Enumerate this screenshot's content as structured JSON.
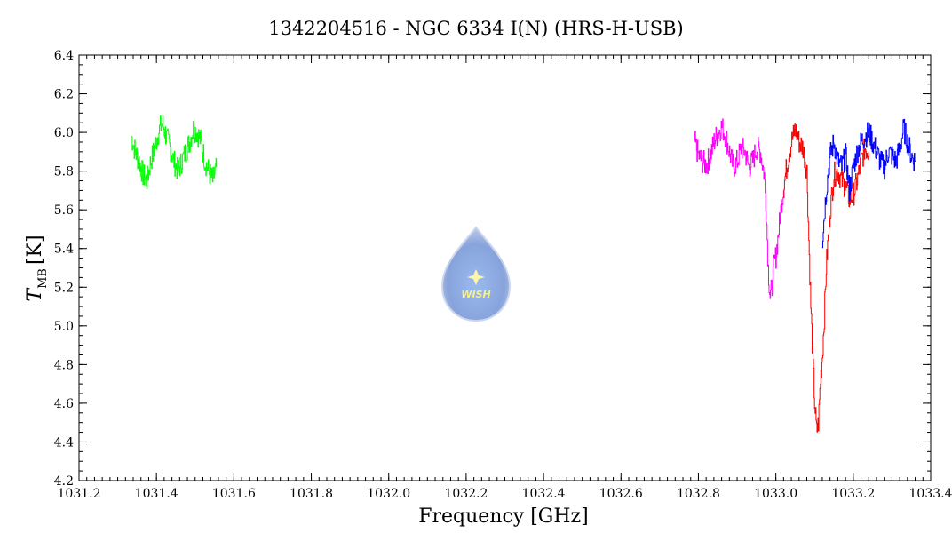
{
  "chart_data": {
    "type": "line",
    "title": "1342204516 - NGC 6334 I(N) (HRS-H-USB)",
    "xlabel": "Frequency [GHz]",
    "ylabel": "T",
    "ylabel_sub": "MB",
    "ylabel_unit": "[K]",
    "xlim": [
      1031.2,
      1033.4
    ],
    "ylim": [
      4.2,
      6.4
    ],
    "xticks": [
      "1031.2",
      "1031.4",
      "1031.6",
      "1031.8",
      "1032.0",
      "1032.2",
      "1032.4",
      "1032.6",
      "1032.8",
      "1033.0",
      "1033.2",
      "1033.4"
    ],
    "yticks": [
      "4.2",
      "4.4",
      "4.6",
      "4.8",
      "5.0",
      "5.2",
      "5.4",
      "5.6",
      "5.8",
      "6.0",
      "6.2",
      "6.4"
    ],
    "logo_text": "WISH",
    "series": [
      {
        "color": "#00ff00",
        "x": [
          1031.335,
          1031.345,
          1031.355,
          1031.365,
          1031.375,
          1031.385,
          1031.395,
          1031.405,
          1031.415,
          1031.425,
          1031.435,
          1031.445,
          1031.455,
          1031.465,
          1031.475,
          1031.485,
          1031.495,
          1031.505,
          1031.515,
          1031.525,
          1031.535,
          1031.545,
          1031.555
        ],
        "y": [
          5.98,
          5.9,
          5.85,
          5.78,
          5.75,
          5.85,
          5.92,
          6.0,
          6.05,
          5.98,
          5.92,
          5.85,
          5.8,
          5.85,
          5.9,
          5.95,
          6.02,
          6.0,
          5.95,
          5.85,
          5.8,
          5.75,
          5.82
        ]
      },
      {
        "color": "#ff00ff",
        "x": [
          1032.79,
          1032.8,
          1032.81,
          1032.82,
          1032.83,
          1032.84,
          1032.85,
          1032.86,
          1032.87,
          1032.88,
          1032.89,
          1032.9,
          1032.91,
          1032.92,
          1032.93,
          1032.94,
          1032.95,
          1032.96,
          1032.97,
          1032.975,
          1032.98,
          1032.985,
          1032.99,
          1032.995,
          1033.0,
          1033.005,
          1033.01,
          1033.015,
          1033.02
        ],
        "y": [
          5.95,
          5.88,
          5.85,
          5.83,
          5.88,
          5.95,
          6.0,
          6.03,
          5.98,
          5.9,
          5.82,
          5.85,
          5.92,
          5.9,
          5.82,
          5.85,
          5.92,
          5.9,
          5.78,
          5.6,
          5.3,
          5.15,
          5.2,
          5.32,
          5.36,
          5.45,
          5.55,
          5.65,
          5.7
        ]
      },
      {
        "color": "#ff0000",
        "x": [
          1033.02,
          1033.03,
          1033.04,
          1033.05,
          1033.06,
          1033.07,
          1033.08,
          1033.085,
          1033.09,
          1033.095,
          1033.1,
          1033.105,
          1033.11,
          1033.115,
          1033.12,
          1033.125,
          1033.13,
          1033.14,
          1033.15,
          1033.16,
          1033.17,
          1033.18,
          1033.19,
          1033.2,
          1033.21,
          1033.22,
          1033.23,
          1033.24
        ],
        "y": [
          5.72,
          5.85,
          5.95,
          6.02,
          5.95,
          5.92,
          5.8,
          5.45,
          5.1,
          4.85,
          4.6,
          4.45,
          4.5,
          4.72,
          4.85,
          5.05,
          5.3,
          5.6,
          5.78,
          5.8,
          5.75,
          5.72,
          5.65,
          5.68,
          5.75,
          5.85,
          5.92,
          5.9
        ]
      },
      {
        "color": "#0000ff",
        "x": [
          1033.12,
          1033.13,
          1033.14,
          1033.15,
          1033.16,
          1033.17,
          1033.18,
          1033.19,
          1033.2,
          1033.21,
          1033.22,
          1033.23,
          1033.24,
          1033.25,
          1033.26,
          1033.27,
          1033.28,
          1033.29,
          1033.3,
          1033.31,
          1033.32,
          1033.33,
          1033.34,
          1033.35,
          1033.36
        ],
        "y": [
          5.45,
          5.7,
          5.88,
          5.95,
          5.85,
          5.82,
          5.88,
          5.7,
          5.82,
          5.9,
          5.95,
          5.98,
          6.0,
          5.95,
          5.9,
          5.85,
          5.82,
          5.9,
          5.88,
          5.85,
          5.92,
          6.02,
          5.95,
          5.88,
          5.85
        ]
      }
    ]
  }
}
